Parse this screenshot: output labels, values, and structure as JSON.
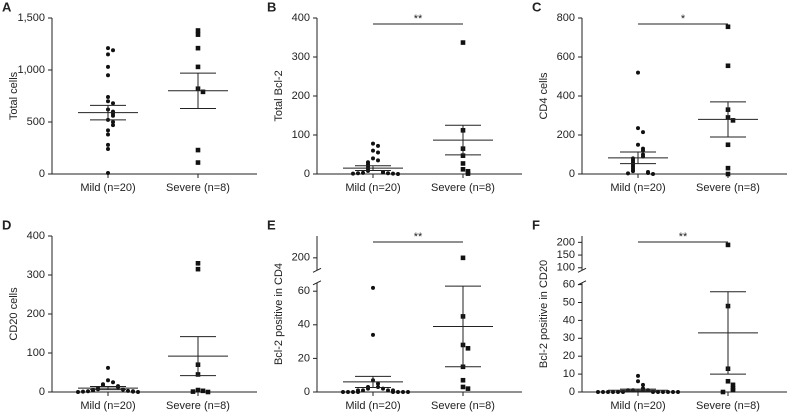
{
  "chart_data": [
    {
      "type": "dotplot",
      "panel": "A",
      "ylabel": "Total cells",
      "categories": [
        "Mild (n=20)",
        "Severe (n=8)"
      ],
      "ylim": [
        0,
        1500
      ],
      "yticks": [
        0,
        500,
        {
          "value": 1000,
          "label": "1,000"
        },
        {
          "value": 1500,
          "label": "1,500"
        }
      ],
      "markers": [
        "circle",
        "square"
      ],
      "color": "#111",
      "groups": [
        {
          "values": [
            1210,
            1190,
            1150,
            1030,
            950,
            740,
            700,
            680,
            620,
            600,
            580,
            560,
            520,
            500,
            470,
            420,
            380,
            280,
            240,
            10
          ],
          "mean": 590,
          "sem": 70
        },
        {
          "values": [
            1380,
            1340,
            1210,
            1030,
            820,
            790,
            230,
            110
          ],
          "mean": 800,
          "sem": 170
        }
      ]
    },
    {
      "type": "dotplot",
      "panel": "B",
      "ylabel": "Total Bcl-2",
      "categories": [
        "Mild (n=20)",
        "Severe (n=8)"
      ],
      "ylim": [
        0,
        400
      ],
      "yticks": [
        0,
        100,
        200,
        300,
        400
      ],
      "significance": "**",
      "markers": [
        "circle",
        "square"
      ],
      "color": "#111",
      "groups": [
        {
          "values": [
            78,
            72,
            60,
            55,
            40,
            35,
            30,
            25,
            20,
            15,
            10,
            8,
            5,
            4,
            3,
            2,
            2,
            1,
            1,
            0
          ],
          "mean": 15,
          "sem": 6
        },
        {
          "values": [
            337,
            112,
            65,
            47,
            27,
            12,
            7,
            1
          ],
          "mean": 87,
          "sem": 38
        }
      ]
    },
    {
      "type": "dotplot",
      "panel": "C",
      "ylabel": "CD4 cells",
      "categories": [
        "Mild (n=20)",
        "Severe (n=8)"
      ],
      "ylim": [
        0,
        800
      ],
      "yticks": [
        0,
        200,
        400,
        600,
        800
      ],
      "significance": "*",
      "markers": [
        "circle",
        "square"
      ],
      "color": "#111",
      "groups": [
        {
          "values": [
            520,
            235,
            215,
            150,
            130,
            120,
            100,
            90,
            80,
            70,
            60,
            50,
            40,
            30,
            20,
            15,
            10,
            5,
            3,
            0
          ],
          "mean": 83,
          "sem": 30
        },
        {
          "values": [
            755,
            555,
            330,
            290,
            275,
            150,
            30,
            0
          ],
          "mean": 280,
          "sem": 90
        }
      ]
    },
    {
      "type": "dotplot",
      "panel": "D",
      "ylabel": "CD20 cells",
      "categories": [
        "Mild (n=20)",
        "Severe (n=8)"
      ],
      "ylim": [
        0,
        400
      ],
      "yticks": [
        0,
        100,
        200,
        300,
        400
      ],
      "markers": [
        "circle",
        "square"
      ],
      "color": "#111",
      "groups": [
        {
          "values": [
            62,
            30,
            25,
            20,
            18,
            15,
            12,
            10,
            8,
            7,
            6,
            5,
            4,
            3,
            2,
            2,
            1,
            1,
            0,
            0
          ],
          "mean": 10,
          "sem": 4
        },
        {
          "values": [
            330,
            315,
            70,
            45,
            5,
            3,
            1,
            0
          ],
          "mean": 92,
          "sem": 50
        }
      ]
    },
    {
      "type": "dotplot",
      "panel": "E",
      "ylabel": "Bcl-2 positive in CD4",
      "categories": [
        "Mild (n=20)",
        "Severe (n=8)"
      ],
      "ysegments": [
        {
          "ylim": [
            0,
            65
          ],
          "yticks": [
            0,
            20,
            40,
            60
          ]
        },
        {
          "ylim": [
            180,
            235
          ],
          "yticks": [
            200
          ]
        }
      ],
      "significance": "**",
      "markers": [
        "circle",
        "square"
      ],
      "color": "#111",
      "groups": [
        {
          "values": [
            62,
            34,
            7,
            5,
            3,
            3,
            2,
            2,
            1,
            1,
            1,
            1,
            0,
            0,
            0,
            0,
            0,
            0,
            0,
            0
          ],
          "mean": 6,
          "sem": 3.3
        },
        {
          "values": [
            200,
            45,
            28,
            26,
            15,
            7,
            3,
            2
          ],
          "mean": 39,
          "sem": 24
        }
      ]
    },
    {
      "type": "dotplot",
      "panel": "F",
      "ylabel": "Bcl-2 positive in CD20",
      "categories": [
        "Mild (n=20)",
        "Severe (n=8)"
      ],
      "ysegments": [
        {
          "ylim": [
            0,
            61
          ],
          "yticks": [
            0,
            10,
            20,
            30,
            40,
            50,
            60
          ]
        },
        {
          "ylim": [
            90,
            225
          ],
          "yticks": [
            100,
            150,
            200
          ]
        }
      ],
      "significance": "**",
      "markers": [
        "circle",
        "square"
      ],
      "color": "#111",
      "groups": [
        {
          "values": [
            9,
            6,
            4,
            2,
            1,
            1,
            1,
            1,
            0,
            0,
            0,
            0,
            0,
            0,
            0,
            0,
            0,
            0,
            0,
            0
          ],
          "mean": 1,
          "sem": 0.6
        },
        {
          "values": [
            190,
            48,
            13,
            6,
            4,
            2,
            1,
            0
          ],
          "mean": 33,
          "sem": 23
        }
      ]
    }
  ]
}
